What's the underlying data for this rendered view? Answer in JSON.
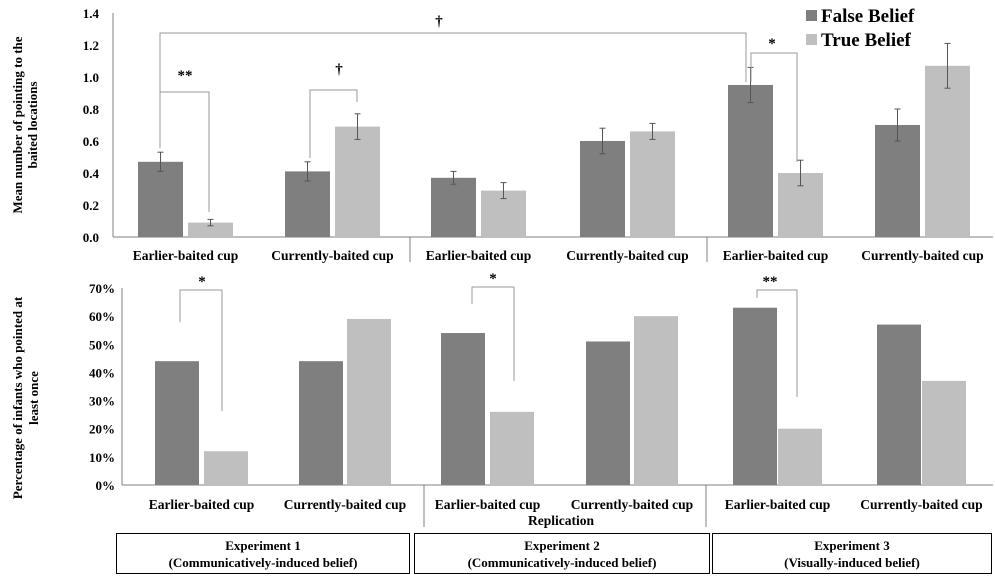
{
  "colors": {
    "false_belief": "#7f7f7f",
    "true_belief": "#bfbfbf",
    "axis": "#808080",
    "bracket": "#9a9a9a"
  },
  "legend": [
    {
      "label": "False Belief",
      "color": "#7f7f7f"
    },
    {
      "label": "True Belief",
      "color": "#bfbfbf"
    }
  ],
  "chart_data": [
    {
      "type": "bar",
      "ylabel": "Mean number of pointing to the baited locations",
      "ylim": [
        0,
        1.4
      ],
      "yticks": [
        "0.0",
        "0.2",
        "0.4",
        "0.6",
        "0.8",
        "1.0",
        "1.2",
        "1.4"
      ],
      "categories": [
        "Earlier-baited cup",
        "Currently-baited cup",
        "Earlier-baited cup",
        "Currently-baited cup",
        "Earlier-baited cup",
        "Currently-baited cup"
      ],
      "series": [
        {
          "name": "False Belief",
          "values": [
            0.47,
            0.41,
            0.37,
            0.6,
            0.95,
            0.7
          ],
          "errors": [
            0.06,
            0.06,
            0.04,
            0.08,
            0.11,
            0.1
          ]
        },
        {
          "name": "True Belief",
          "values": [
            0.09,
            0.69,
            0.29,
            0.66,
            0.4,
            1.07
          ],
          "errors": [
            0.02,
            0.08,
            0.05,
            0.05,
            0.08,
            0.14
          ]
        }
      ],
      "annotations": [
        {
          "text": "**",
          "between": "Earlier-baited cup (Experiment 1) False vs True"
        },
        {
          "text": "†",
          "between": "Currently-baited cup (Experiment 1) False vs True"
        },
        {
          "text": "*",
          "between": "Earlier-baited cup (Experiment 3) False vs True"
        },
        {
          "text": "†",
          "between": "Earlier-baited cup False: Experiment 1 vs Experiment 3"
        }
      ],
      "legend_position": "top-right"
    },
    {
      "type": "bar",
      "ylabel": "Percentage of infants who pointed at least once",
      "ylim": [
        0,
        70
      ],
      "yticks": [
        "0%",
        "10%",
        "20%",
        "30%",
        "40%",
        "50%",
        "60%",
        "70%"
      ],
      "categories": [
        "Earlier-baited cup",
        "Currently-baited cup",
        "Earlier-baited cup",
        "Currently-baited cup",
        "Earlier-baited cup",
        "Currently-baited cup"
      ],
      "series": [
        {
          "name": "False Belief",
          "values": [
            44,
            44,
            54,
            51,
            63,
            57
          ]
        },
        {
          "name": "True Belief",
          "values": [
            12,
            59,
            26,
            60,
            20,
            37
          ]
        }
      ],
      "annotations": [
        {
          "text": "*",
          "between": "Earlier-baited cup (Experiment 1) False vs True"
        },
        {
          "text": "*",
          "between": "Earlier-baited cup (Replication) False vs True"
        },
        {
          "text": "**",
          "between": "Earlier-baited cup (Experiment 3) False vs True"
        }
      ],
      "sublabel": "Replication"
    }
  ],
  "experiments": [
    {
      "title": "Experiment 1",
      "subtitle": "(Communicatively-induced belief)"
    },
    {
      "title": "Experiment 2",
      "subtitle": "(Communicatively-induced belief)"
    },
    {
      "title": "Experiment 3",
      "subtitle": "(Visually-induced belief)"
    }
  ]
}
